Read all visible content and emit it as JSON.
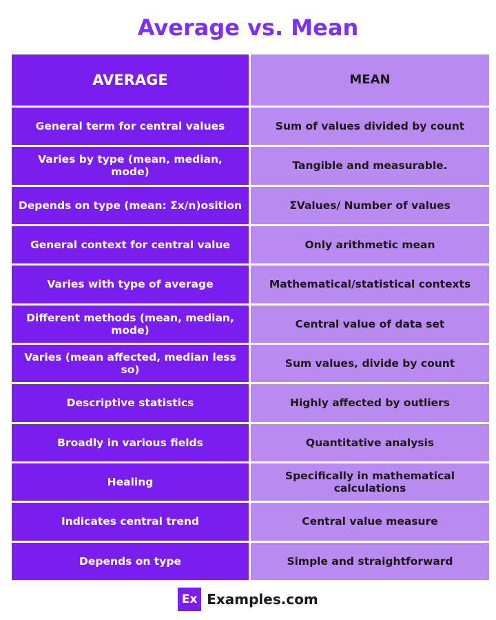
{
  "title": "Average vs. Mean",
  "table": {
    "headers": [
      "AVERAGE",
      "MEAN"
    ],
    "rows": [
      {
        "average": "General term for central values",
        "mean": "Sum of values divided by count"
      },
      {
        "average": "Varies by type (mean, median, mode)",
        "mean": "Tangible and measurable."
      },
      {
        "average": "Depends on type   (mean: Σx/n)osition",
        "mean": "ΣValues/ Number of values"
      },
      {
        "average": "General context for central value",
        "mean": "Only arithmetic mean"
      },
      {
        "average": "Varies with type of average",
        "mean": "Mathematical/statistical contexts"
      },
      {
        "average": "Different methods (mean, median, mode)",
        "mean": "Central value of data set"
      },
      {
        "average": "Varies (mean affected, median less so)",
        "mean": "Sum values, divide by count"
      },
      {
        "average": "Descriptive statistics",
        "mean": "Highly affected by outliers"
      },
      {
        "average": "Broadly in various fields",
        "mean": "Quantitative analysis"
      },
      {
        "average": "Healing",
        "mean": "Specifically in mathematical calculations"
      },
      {
        "average": "Indicates central trend",
        "mean": "Central value measure"
      },
      {
        "average": "Depends on type",
        "mean": "Simple and straightforward"
      }
    ]
  },
  "footer": {
    "logo_text": "Ex",
    "brand": "Examples.com"
  },
  "colors": {
    "title": "#7b2ff7",
    "left_column": "#7a1ef0",
    "right_column": "#b98af0"
  }
}
